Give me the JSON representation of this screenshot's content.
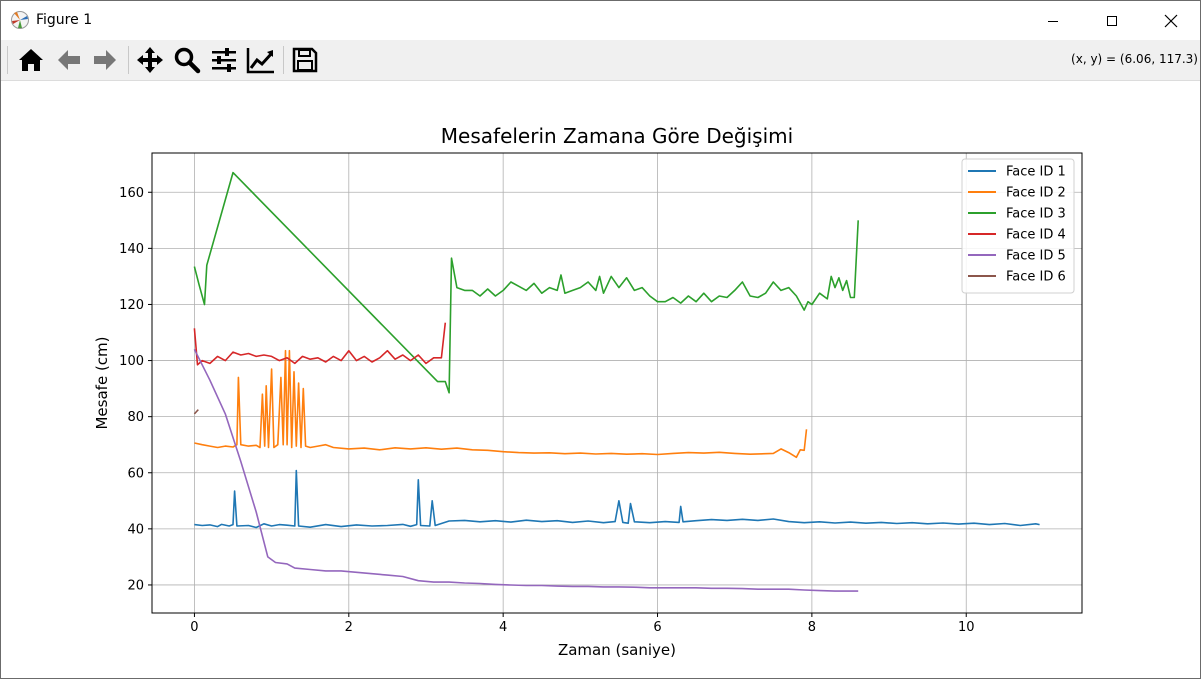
{
  "window": {
    "title": "Figure 1"
  },
  "toolbar": {
    "buttons": [
      "home-icon",
      "back-icon",
      "forward-icon",
      "pan-icon",
      "zoom-icon",
      "configure-subplots-icon",
      "edit-axis-icon",
      "save-icon"
    ],
    "coords": "(x, y) = (6.06, 117.3)"
  },
  "chart_data": {
    "type": "line",
    "title": "Mesafelerin Zamana Göre Değişimi",
    "xlabel": "Zaman (saniye)",
    "ylabel": "Mesafe (cm)",
    "xlim": [
      -0.55,
      11.5
    ],
    "ylim": [
      10,
      174
    ],
    "xticks": [
      0,
      2,
      4,
      6,
      8,
      10
    ],
    "yticks": [
      20,
      40,
      60,
      80,
      100,
      120,
      140,
      160
    ],
    "grid": true,
    "legend_position": "top-right",
    "series": [
      {
        "name": "Face ID 1",
        "color": "#1f77b4",
        "points": [
          [
            0,
            41.5
          ],
          [
            0.1,
            41.2
          ],
          [
            0.2,
            41.4
          ],
          [
            0.3,
            40.8
          ],
          [
            0.35,
            41.6
          ],
          [
            0.45,
            41.0
          ],
          [
            0.5,
            41.5
          ],
          [
            0.52,
            53.5
          ],
          [
            0.55,
            41.0
          ],
          [
            0.7,
            41.2
          ],
          [
            0.8,
            40.5
          ],
          [
            0.9,
            41.8
          ],
          [
            1.0,
            41.0
          ],
          [
            1.1,
            41.5
          ],
          [
            1.2,
            41.3
          ],
          [
            1.3,
            41.0
          ],
          [
            1.32,
            60.8
          ],
          [
            1.35,
            41.0
          ],
          [
            1.5,
            40.6
          ],
          [
            1.7,
            41.5
          ],
          [
            1.9,
            40.8
          ],
          [
            2.1,
            41.4
          ],
          [
            2.3,
            41.0
          ],
          [
            2.5,
            41.2
          ],
          [
            2.7,
            41.6
          ],
          [
            2.8,
            40.9
          ],
          [
            2.88,
            41.5
          ],
          [
            2.9,
            57.5
          ],
          [
            2.93,
            41.2
          ],
          [
            3.05,
            41.0
          ],
          [
            3.08,
            50.0
          ],
          [
            3.12,
            41.2
          ],
          [
            3.3,
            42.8
          ],
          [
            3.5,
            43.0
          ],
          [
            3.7,
            42.5
          ],
          [
            3.9,
            42.9
          ],
          [
            4.1,
            42.4
          ],
          [
            4.3,
            43.1
          ],
          [
            4.5,
            42.6
          ],
          [
            4.7,
            42.9
          ],
          [
            4.9,
            42.3
          ],
          [
            5.1,
            42.8
          ],
          [
            5.3,
            42.2
          ],
          [
            5.45,
            42.6
          ],
          [
            5.5,
            50.0
          ],
          [
            5.55,
            42.3
          ],
          [
            5.62,
            42.0
          ],
          [
            5.65,
            49.0
          ],
          [
            5.7,
            42.5
          ],
          [
            5.9,
            42.2
          ],
          [
            6.1,
            42.6
          ],
          [
            6.28,
            42.3
          ],
          [
            6.3,
            48.0
          ],
          [
            6.33,
            42.5
          ],
          [
            6.5,
            42.9
          ],
          [
            6.7,
            43.3
          ],
          [
            6.9,
            43.0
          ],
          [
            7.1,
            43.4
          ],
          [
            7.3,
            43.0
          ],
          [
            7.5,
            43.5
          ],
          [
            7.7,
            42.6
          ],
          [
            7.9,
            42.2
          ],
          [
            8.1,
            42.5
          ],
          [
            8.3,
            42.1
          ],
          [
            8.5,
            42.4
          ],
          [
            8.7,
            42.0
          ],
          [
            8.9,
            42.3
          ],
          [
            9.1,
            41.9
          ],
          [
            9.3,
            42.2
          ],
          [
            9.5,
            41.8
          ],
          [
            9.7,
            42.1
          ],
          [
            9.9,
            41.7
          ],
          [
            10.1,
            42.0
          ],
          [
            10.3,
            41.5
          ],
          [
            10.5,
            41.9
          ],
          [
            10.7,
            41.2
          ],
          [
            10.9,
            41.8
          ],
          [
            10.95,
            41.5
          ]
        ]
      },
      {
        "name": "Face ID 2",
        "color": "#ff7f0e",
        "points": [
          [
            0,
            70.6
          ],
          [
            0.1,
            70.0
          ],
          [
            0.2,
            69.5
          ],
          [
            0.3,
            69.0
          ],
          [
            0.4,
            69.5
          ],
          [
            0.5,
            69.2
          ],
          [
            0.55,
            70.0
          ],
          [
            0.57,
            94.0
          ],
          [
            0.6,
            70.0
          ],
          [
            0.7,
            69.5
          ],
          [
            0.8,
            69.8
          ],
          [
            0.85,
            69.0
          ],
          [
            0.88,
            88.0
          ],
          [
            0.91,
            69.5
          ],
          [
            0.93,
            91.0
          ],
          [
            0.96,
            69.0
          ],
          [
            1.0,
            97.0
          ],
          [
            1.03,
            69.0
          ],
          [
            1.08,
            70.0
          ],
          [
            1.12,
            94.0
          ],
          [
            1.15,
            70.0
          ],
          [
            1.18,
            103.5
          ],
          [
            1.2,
            70.0
          ],
          [
            1.23,
            103.5
          ],
          [
            1.26,
            69.0
          ],
          [
            1.29,
            96.0
          ],
          [
            1.32,
            69.5
          ],
          [
            1.35,
            92.0
          ],
          [
            1.38,
            69.0
          ],
          [
            1.41,
            90.0
          ],
          [
            1.44,
            69.5
          ],
          [
            1.5,
            69.0
          ],
          [
            1.6,
            69.5
          ],
          [
            1.7,
            70.0
          ],
          [
            1.8,
            69.0
          ],
          [
            2.0,
            68.5
          ],
          [
            2.2,
            68.8
          ],
          [
            2.4,
            68.2
          ],
          [
            2.6,
            68.9
          ],
          [
            2.8,
            68.5
          ],
          [
            3.0,
            68.9
          ],
          [
            3.2,
            68.4
          ],
          [
            3.4,
            68.8
          ],
          [
            3.6,
            68.2
          ],
          [
            3.8,
            68.0
          ],
          [
            4.0,
            67.5
          ],
          [
            4.2,
            67.2
          ],
          [
            4.4,
            67.0
          ],
          [
            4.6,
            67.1
          ],
          [
            4.8,
            66.8
          ],
          [
            5.0,
            67.0
          ],
          [
            5.2,
            66.7
          ],
          [
            5.4,
            66.9
          ],
          [
            5.6,
            66.6
          ],
          [
            5.8,
            66.8
          ],
          [
            6.0,
            66.5
          ],
          [
            6.2,
            66.9
          ],
          [
            6.4,
            67.2
          ],
          [
            6.6,
            67.0
          ],
          [
            6.8,
            67.3
          ],
          [
            7.0,
            66.9
          ],
          [
            7.2,
            66.6
          ],
          [
            7.4,
            66.8
          ],
          [
            7.5,
            66.9
          ],
          [
            7.6,
            68.5
          ],
          [
            7.7,
            67.2
          ],
          [
            7.8,
            65.5
          ],
          [
            7.85,
            68.2
          ],
          [
            7.9,
            68.0
          ],
          [
            7.93,
            75.5
          ]
        ]
      },
      {
        "name": "Face ID 3",
        "color": "#2ca02c",
        "points": [
          [
            0,
            133.5
          ],
          [
            0.06,
            127.0
          ],
          [
            0.13,
            120.0
          ],
          [
            0.16,
            134.0
          ],
          [
            0.5,
            167.0
          ],
          [
            3.15,
            92.5
          ],
          [
            3.25,
            92.5
          ],
          [
            3.3,
            88.5
          ],
          [
            3.33,
            136.5
          ],
          [
            3.4,
            126.0
          ],
          [
            3.5,
            125.0
          ],
          [
            3.6,
            125.0
          ],
          [
            3.7,
            123.0
          ],
          [
            3.8,
            125.5
          ],
          [
            3.9,
            123.0
          ],
          [
            4.0,
            125.0
          ],
          [
            4.1,
            128.0
          ],
          [
            4.2,
            126.5
          ],
          [
            4.3,
            125.0
          ],
          [
            4.4,
            127.5
          ],
          [
            4.5,
            124.0
          ],
          [
            4.6,
            126.0
          ],
          [
            4.7,
            125.0
          ],
          [
            4.75,
            130.5
          ],
          [
            4.8,
            124.0
          ],
          [
            4.9,
            125.0
          ],
          [
            5.0,
            126.0
          ],
          [
            5.1,
            128.0
          ],
          [
            5.2,
            125.0
          ],
          [
            5.25,
            130.0
          ],
          [
            5.3,
            124.0
          ],
          [
            5.4,
            130.0
          ],
          [
            5.5,
            126.0
          ],
          [
            5.6,
            129.5
          ],
          [
            5.7,
            125.0
          ],
          [
            5.8,
            126.0
          ],
          [
            5.9,
            123.0
          ],
          [
            6.0,
            121.0
          ],
          [
            6.1,
            121.0
          ],
          [
            6.2,
            122.5
          ],
          [
            6.3,
            120.5
          ],
          [
            6.4,
            123.0
          ],
          [
            6.5,
            121.0
          ],
          [
            6.6,
            124.0
          ],
          [
            6.7,
            121.0
          ],
          [
            6.8,
            123.0
          ],
          [
            6.9,
            122.5
          ],
          [
            7.0,
            125.0
          ],
          [
            7.1,
            128.0
          ],
          [
            7.2,
            123.0
          ],
          [
            7.3,
            122.5
          ],
          [
            7.4,
            124.0
          ],
          [
            7.5,
            128.0
          ],
          [
            7.6,
            125.0
          ],
          [
            7.7,
            126.0
          ],
          [
            7.8,
            123.0
          ],
          [
            7.9,
            118.0
          ],
          [
            7.95,
            121.0
          ],
          [
            8.0,
            120.0
          ],
          [
            8.1,
            124.0
          ],
          [
            8.2,
            122.0
          ],
          [
            8.25,
            130.0
          ],
          [
            8.3,
            126.0
          ],
          [
            8.35,
            129.5
          ],
          [
            8.4,
            125.0
          ],
          [
            8.45,
            128.5
          ],
          [
            8.5,
            122.5
          ],
          [
            8.55,
            122.5
          ],
          [
            8.6,
            150.0
          ]
        ]
      },
      {
        "name": "Face ID 4",
        "color": "#d62728",
        "points": [
          [
            0,
            111.5
          ],
          [
            0.04,
            98.5
          ],
          [
            0.1,
            100.0
          ],
          [
            0.2,
            99.0
          ],
          [
            0.3,
            101.5
          ],
          [
            0.4,
            100.0
          ],
          [
            0.5,
            103.0
          ],
          [
            0.6,
            102.0
          ],
          [
            0.7,
            102.5
          ],
          [
            0.8,
            101.5
          ],
          [
            0.9,
            102.0
          ],
          [
            1.0,
            101.5
          ],
          [
            1.1,
            100.0
          ],
          [
            1.2,
            101.0
          ],
          [
            1.3,
            99.0
          ],
          [
            1.4,
            101.5
          ],
          [
            1.5,
            100.5
          ],
          [
            1.6,
            101.0
          ],
          [
            1.7,
            99.5
          ],
          [
            1.8,
            101.5
          ],
          [
            1.9,
            100.0
          ],
          [
            2.0,
            103.5
          ],
          [
            2.1,
            100.0
          ],
          [
            2.2,
            101.5
          ],
          [
            2.3,
            99.5
          ],
          [
            2.4,
            101.0
          ],
          [
            2.5,
            103.5
          ],
          [
            2.6,
            100.5
          ],
          [
            2.7,
            102.0
          ],
          [
            2.8,
            100.0
          ],
          [
            2.9,
            102.0
          ],
          [
            3.0,
            99.0
          ],
          [
            3.1,
            101.0
          ],
          [
            3.2,
            101.0
          ],
          [
            3.25,
            113.5
          ]
        ]
      },
      {
        "name": "Face ID 5",
        "color": "#9467bd",
        "points": [
          [
            0,
            104.0
          ],
          [
            0.2,
            93.0
          ],
          [
            0.4,
            81.0
          ],
          [
            0.6,
            64.0
          ],
          [
            0.8,
            46.0
          ],
          [
            0.95,
            30.0
          ],
          [
            1.05,
            28.0
          ],
          [
            1.2,
            27.5
          ],
          [
            1.3,
            26.0
          ],
          [
            1.5,
            25.5
          ],
          [
            1.7,
            25.0
          ],
          [
            1.9,
            25.0
          ],
          [
            2.1,
            24.5
          ],
          [
            2.3,
            24.0
          ],
          [
            2.5,
            23.5
          ],
          [
            2.7,
            23.0
          ],
          [
            2.9,
            21.5
          ],
          [
            3.1,
            21.0
          ],
          [
            3.3,
            21.0
          ],
          [
            3.5,
            20.7
          ],
          [
            3.7,
            20.5
          ],
          [
            3.9,
            20.2
          ],
          [
            4.1,
            20.0
          ],
          [
            4.3,
            19.8
          ],
          [
            4.5,
            19.8
          ],
          [
            4.7,
            19.6
          ],
          [
            4.9,
            19.5
          ],
          [
            5.1,
            19.5
          ],
          [
            5.3,
            19.3
          ],
          [
            5.5,
            19.3
          ],
          [
            5.7,
            19.2
          ],
          [
            5.9,
            19.0
          ],
          [
            6.1,
            19.0
          ],
          [
            6.3,
            19.0
          ],
          [
            6.5,
            19.0
          ],
          [
            6.7,
            18.8
          ],
          [
            6.9,
            18.8
          ],
          [
            7.1,
            18.7
          ],
          [
            7.3,
            18.5
          ],
          [
            7.5,
            18.5
          ],
          [
            7.7,
            18.5
          ],
          [
            7.9,
            18.2
          ],
          [
            8.1,
            18.0
          ],
          [
            8.3,
            17.8
          ],
          [
            8.5,
            17.8
          ],
          [
            8.6,
            17.8
          ]
        ]
      },
      {
        "name": "Face ID 6",
        "color": "#8c564b",
        "points": [
          [
            0.0,
            81.0
          ],
          [
            0.05,
            82.5
          ]
        ]
      }
    ]
  }
}
